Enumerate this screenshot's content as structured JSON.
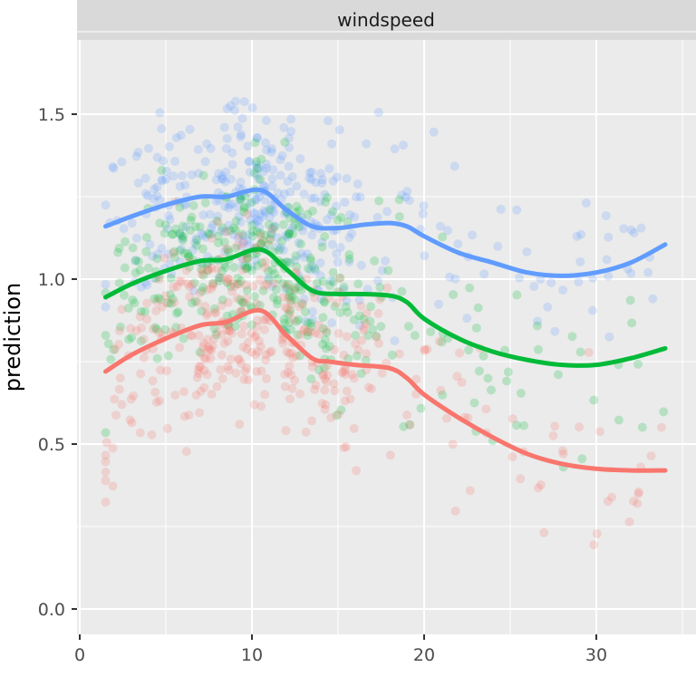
{
  "chart_data": {
    "type": "scatter",
    "facet_label": "windspeed",
    "xlabel": "",
    "ylabel": "prediction",
    "xlim": [
      0,
      35
    ],
    "ylim": [
      0,
      1.75
    ],
    "x_ticks": [
      0,
      10,
      20,
      30
    ],
    "x_tick_labels": [
      "0",
      "10",
      "20",
      "30"
    ],
    "y_ticks": [
      0.0,
      0.5,
      1.0,
      1.5
    ],
    "y_tick_labels": [
      "0.0",
      "0.5",
      "1.0",
      "1.5"
    ],
    "grid": true,
    "legend": "none",
    "colors": {
      "panel_bg": "#ebebeb",
      "strip_bg": "#d9d9d9",
      "grid": "#ffffff",
      "red": "#f8766d",
      "green": "#00ba38",
      "blue": "#619cff"
    },
    "series": [
      {
        "color": "#f8766d",
        "points_center": [
          [
            2,
            0.72
          ],
          [
            4,
            0.78
          ],
          [
            6,
            0.84
          ],
          [
            8,
            0.86
          ],
          [
            10,
            0.88
          ],
          [
            12,
            0.82
          ],
          [
            14,
            0.74
          ],
          [
            16,
            0.72
          ],
          [
            18,
            0.72
          ],
          [
            20,
            0.65
          ],
          [
            22,
            0.57
          ],
          [
            24,
            0.51
          ],
          [
            26,
            0.47
          ],
          [
            28,
            0.44
          ],
          [
            30,
            0.42
          ],
          [
            32,
            0.42
          ],
          [
            34,
            0.4
          ]
        ],
        "smooth": [
          [
            1.5,
            0.72
          ],
          [
            3,
            0.77
          ],
          [
            5,
            0.82
          ],
          [
            7,
            0.86
          ],
          [
            8.5,
            0.87
          ],
          [
            10.5,
            0.905
          ],
          [
            12,
            0.83
          ],
          [
            13.5,
            0.76
          ],
          [
            14.5,
            0.75
          ],
          [
            16,
            0.74
          ],
          [
            18,
            0.73
          ],
          [
            19,
            0.7
          ],
          [
            20,
            0.65
          ],
          [
            22,
            0.58
          ],
          [
            24,
            0.52
          ],
          [
            26,
            0.47
          ],
          [
            28,
            0.44
          ],
          [
            30,
            0.425
          ],
          [
            32,
            0.42
          ],
          [
            34,
            0.42
          ]
        ]
      },
      {
        "color": "#00ba38",
        "points_center": [
          [
            2,
            0.95
          ],
          [
            4,
            1.0
          ],
          [
            6,
            1.04
          ],
          [
            8,
            1.06
          ],
          [
            10,
            1.08
          ],
          [
            12,
            1.02
          ],
          [
            14,
            0.96
          ],
          [
            16,
            0.95
          ],
          [
            18,
            0.94
          ],
          [
            20,
            0.88
          ],
          [
            22,
            0.8
          ],
          [
            24,
            0.77
          ],
          [
            26,
            0.75
          ],
          [
            28,
            0.74
          ],
          [
            30,
            0.74
          ],
          [
            32,
            0.76
          ],
          [
            34,
            0.79
          ]
        ],
        "smooth": [
          [
            1.5,
            0.945
          ],
          [
            3,
            0.985
          ],
          [
            5,
            1.025
          ],
          [
            7,
            1.055
          ],
          [
            8.5,
            1.06
          ],
          [
            10.5,
            1.09
          ],
          [
            12,
            1.03
          ],
          [
            13.5,
            0.965
          ],
          [
            15,
            0.955
          ],
          [
            16,
            0.955
          ],
          [
            18,
            0.95
          ],
          [
            19,
            0.93
          ],
          [
            20,
            0.88
          ],
          [
            22,
            0.82
          ],
          [
            24,
            0.78
          ],
          [
            26,
            0.755
          ],
          [
            28,
            0.74
          ],
          [
            30,
            0.74
          ],
          [
            32,
            0.76
          ],
          [
            34,
            0.79
          ]
        ]
      },
      {
        "color": "#619cff",
        "points_center": [
          [
            2,
            1.16
          ],
          [
            4,
            1.2
          ],
          [
            6,
            1.23
          ],
          [
            8,
            1.25
          ],
          [
            10,
            1.26
          ],
          [
            12,
            1.2
          ],
          [
            14,
            1.15
          ],
          [
            16,
            1.16
          ],
          [
            18,
            1.17
          ],
          [
            20,
            1.14
          ],
          [
            22,
            1.09
          ],
          [
            24,
            1.05
          ],
          [
            26,
            1.02
          ],
          [
            28,
            1.01
          ],
          [
            30,
            1.02
          ],
          [
            32,
            1.05
          ],
          [
            34,
            1.1
          ]
        ],
        "smooth": [
          [
            1.5,
            1.16
          ],
          [
            3,
            1.19
          ],
          [
            5,
            1.225
          ],
          [
            7,
            1.25
          ],
          [
            8.5,
            1.25
          ],
          [
            10.5,
            1.27
          ],
          [
            12,
            1.21
          ],
          [
            13.5,
            1.16
          ],
          [
            15,
            1.155
          ],
          [
            16.5,
            1.165
          ],
          [
            18,
            1.17
          ],
          [
            19,
            1.16
          ],
          [
            20,
            1.13
          ],
          [
            22,
            1.08
          ],
          [
            24,
            1.05
          ],
          [
            26,
            1.02
          ],
          [
            28,
            1.01
          ],
          [
            30,
            1.02
          ],
          [
            32,
            1.05
          ],
          [
            34,
            1.105
          ]
        ]
      }
    ]
  }
}
